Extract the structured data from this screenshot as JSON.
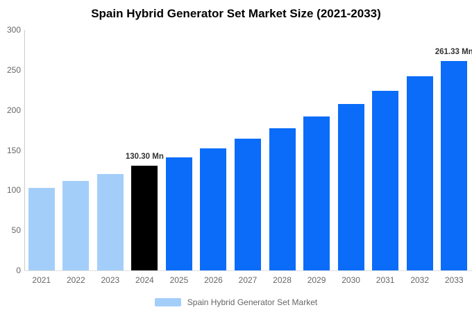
{
  "title": "Spain Hybrid Generator Set Market Size (2021-2033)",
  "legend": {
    "label": "Spain Hybrid Generator Set Market",
    "swatch_color": "#a4cefa"
  },
  "colors": {
    "historical": "#a4cefa",
    "current": "#000000",
    "forecast": "#0a6cf9",
    "axis_line": "#cccccc",
    "baseline": "#e0e0e0",
    "tick_text": "#666666",
    "annotation_text": "#333333",
    "title_text": "#000000"
  },
  "chart_data": {
    "type": "bar",
    "title": "Spain Hybrid Generator Set Market Size (2021-2033)",
    "xlabel": "",
    "ylabel": "",
    "unit": "Mn",
    "categories": [
      "2021",
      "2022",
      "2023",
      "2024",
      "2025",
      "2026",
      "2027",
      "2028",
      "2029",
      "2030",
      "2031",
      "2032",
      "2033"
    ],
    "values": [
      103.3,
      111.6,
      120.6,
      130.3,
      140.8,
      152.1,
      164.3,
      177.5,
      191.8,
      207.2,
      223.9,
      241.9,
      261.33
    ],
    "point_roles": [
      "historical",
      "historical",
      "historical",
      "current",
      "forecast",
      "forecast",
      "forecast",
      "forecast",
      "forecast",
      "forecast",
      "forecast",
      "forecast",
      "forecast"
    ],
    "annotations": [
      {
        "index": 3,
        "text": "130.30 Mn"
      },
      {
        "index": 12,
        "text": "261.33 Mn"
      }
    ],
    "ylim": [
      0,
      300
    ],
    "yticks": [
      0,
      50,
      100,
      150,
      200,
      250,
      300
    ],
    "grid": false,
    "legend_position": "bottom",
    "series_name": "Spain Hybrid Generator Set Market"
  }
}
